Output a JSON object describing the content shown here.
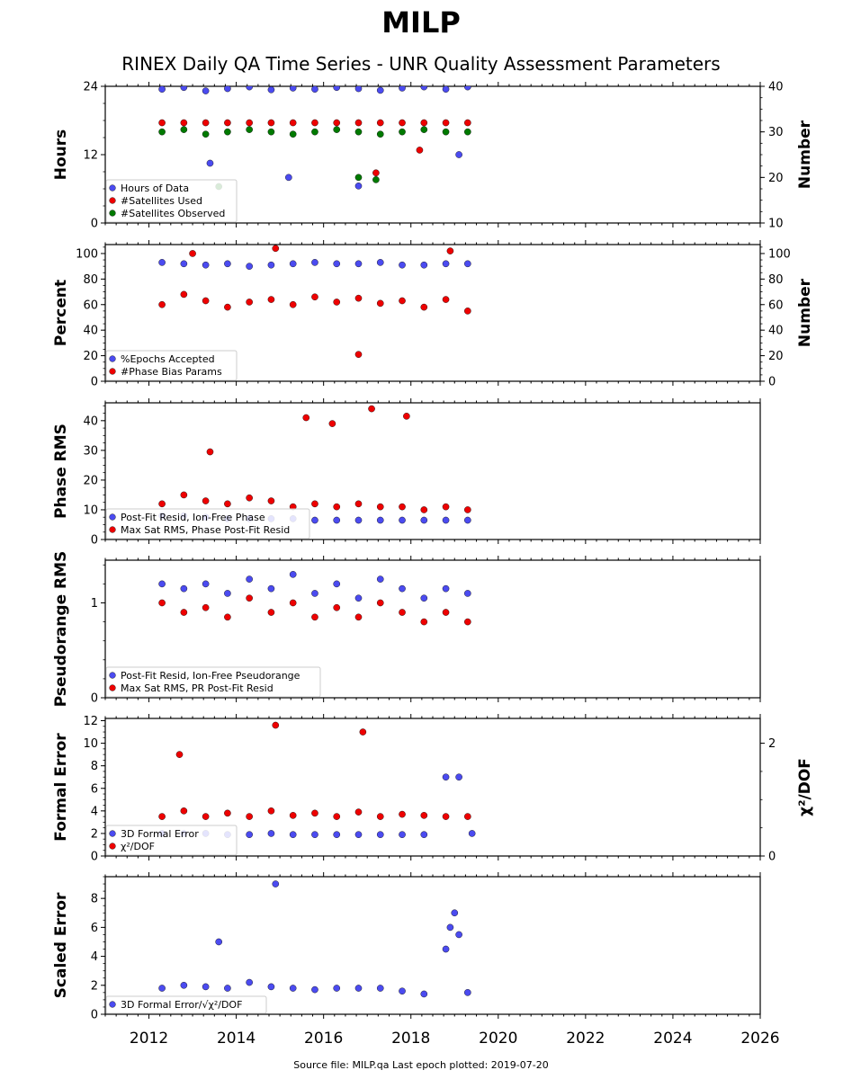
{
  "title": "MILP",
  "subtitle": "RINEX Daily QA Time Series - UNR Quality Assessment Parameters",
  "footer": "Source file: MILP.qa Last epoch plotted: 2019-07-20",
  "colors": {
    "blue": "#4b4bf0",
    "red": "#ee0000",
    "green": "#007a00",
    "edge": "#000000"
  },
  "chart_data": [
    {
      "type": "scatter",
      "ylabel": "Hours",
      "y2label": "Number",
      "xlim": [
        2011,
        2026
      ],
      "ylim": [
        0,
        24
      ],
      "y2lim": [
        10,
        40
      ],
      "yticks": [
        0,
        12,
        24
      ],
      "y2ticks": [
        10,
        20,
        30,
        40
      ],
      "legend": "lower-left",
      "series": [
        {
          "name": "Hours of Data",
          "color": "blue",
          "axis": "left",
          "x": [
            2012.3,
            2012.8,
            2013.3,
            2013.8,
            2014.3,
            2014.8,
            2015.3,
            2015.8,
            2016.3,
            2016.8,
            2017.3,
            2017.8,
            2018.3,
            2018.8,
            2019.3,
            2013.4,
            2015.2,
            2016.8,
            2019.1
          ],
          "y": [
            23.5,
            23.8,
            23.2,
            23.6,
            23.9,
            23.4,
            23.7,
            23.5,
            23.8,
            23.6,
            23.3,
            23.7,
            23.9,
            23.5,
            23.9,
            10.5,
            8.0,
            6.5,
            12.0
          ]
        },
        {
          "name": "#Satellites Used",
          "color": "red",
          "axis": "right",
          "x": [
            2012.3,
            2012.8,
            2013.3,
            2013.8,
            2014.3,
            2014.8,
            2015.3,
            2015.8,
            2016.3,
            2016.8,
            2017.3,
            2017.8,
            2018.3,
            2018.8,
            2019.3,
            2017.2,
            2018.2
          ],
          "y": [
            32,
            32,
            32,
            32,
            32,
            32,
            32,
            32,
            32,
            32,
            32,
            32,
            32,
            32,
            32,
            21,
            26
          ]
        },
        {
          "name": "#Satellites Observed",
          "color": "green",
          "axis": "right",
          "x": [
            2012.3,
            2012.8,
            2013.3,
            2013.8,
            2014.3,
            2014.8,
            2015.3,
            2015.8,
            2016.3,
            2016.8,
            2017.3,
            2017.8,
            2018.3,
            2018.8,
            2019.3,
            2013.6,
            2016.8,
            2017.2
          ],
          "y": [
            30,
            30.5,
            29.5,
            30,
            30.5,
            30,
            29.5,
            30,
            30.5,
            30,
            29.5,
            30,
            30.5,
            30,
            30,
            18,
            20,
            19.5
          ]
        }
      ]
    },
    {
      "type": "scatter",
      "ylabel": "Percent",
      "y2label": "Number",
      "xlim": [
        2011,
        2026
      ],
      "ylim": [
        0,
        107
      ],
      "y2lim": [
        0,
        107
      ],
      "yticks": [
        0,
        20,
        40,
        60,
        80,
        100
      ],
      "y2ticks": [
        0,
        20,
        40,
        60,
        80,
        100
      ],
      "legend": "lower-left",
      "series": [
        {
          "name": "%Epochs Accepted",
          "color": "blue",
          "axis": "left",
          "x": [
            2012.3,
            2012.8,
            2013.3,
            2013.8,
            2014.3,
            2014.8,
            2015.3,
            2015.8,
            2016.3,
            2016.8,
            2017.3,
            2017.8,
            2018.3,
            2018.8,
            2019.3
          ],
          "y": [
            93,
            92,
            91,
            92,
            90,
            91,
            92,
            93,
            92,
            92,
            93,
            91,
            91,
            92,
            92
          ]
        },
        {
          "name": "#Phase Bias Params",
          "color": "red",
          "axis": "right",
          "x": [
            2012.3,
            2012.8,
            2013.3,
            2013.8,
            2014.3,
            2014.8,
            2015.3,
            2015.8,
            2016.3,
            2016.8,
            2017.3,
            2017.8,
            2018.3,
            2018.8,
            2019.3,
            2014.9,
            2016.8,
            2018.9,
            2013.0
          ],
          "y": [
            60,
            68,
            63,
            58,
            62,
            64,
            60,
            66,
            62,
            65,
            61,
            63,
            58,
            64,
            55,
            104,
            21,
            102,
            100
          ]
        }
      ]
    },
    {
      "type": "scatter",
      "ylabel": "Phase RMS",
      "xlim": [
        2011,
        2026
      ],
      "ylim": [
        0,
        46
      ],
      "yticks": [
        0,
        10,
        20,
        30,
        40
      ],
      "legend": "lower-left",
      "series": [
        {
          "name": "Post-Fit Resid, Ion-Free Phase",
          "color": "blue",
          "axis": "left",
          "x": [
            2012.3,
            2012.8,
            2013.3,
            2013.8,
            2014.3,
            2014.8,
            2015.3,
            2015.8,
            2016.3,
            2016.8,
            2017.3,
            2017.8,
            2018.3,
            2018.8,
            2019.3
          ],
          "y": [
            8,
            8,
            7.5,
            7,
            7,
            7,
            7,
            6.5,
            6.5,
            6.5,
            6.5,
            6.5,
            6.5,
            6.5,
            6.5
          ]
        },
        {
          "name": "Max Sat RMS, Phase Post-Fit Resid",
          "color": "red",
          "axis": "left",
          "x": [
            2012.3,
            2012.8,
            2013.3,
            2013.8,
            2014.3,
            2014.8,
            2015.3,
            2015.8,
            2016.3,
            2016.8,
            2017.3,
            2017.8,
            2018.3,
            2018.8,
            2019.3,
            2015.6,
            2016.2,
            2017.1,
            2017.9,
            2013.4
          ],
          "y": [
            12,
            15,
            13,
            12,
            14,
            13,
            11,
            12,
            11,
            12,
            11,
            11,
            10,
            11,
            10,
            41,
            39,
            44,
            41.5,
            29.5
          ]
        }
      ]
    },
    {
      "type": "scatter",
      "ylabel": "Pseudorange RMS",
      "xlim": [
        2011,
        2026
      ],
      "ylim": [
        0,
        1.45
      ],
      "yticks": [
        0,
        1
      ],
      "legend": "lower-left",
      "series": [
        {
          "name": "Post-Fit Resid, Ion-Free Pseudorange",
          "color": "blue",
          "axis": "left",
          "x": [
            2012.3,
            2012.8,
            2013.3,
            2013.8,
            2014.3,
            2014.8,
            2015.3,
            2015.8,
            2016.3,
            2016.8,
            2017.3,
            2017.8,
            2018.3,
            2018.8,
            2019.3
          ],
          "y": [
            1.2,
            1.15,
            1.2,
            1.1,
            1.25,
            1.15,
            1.3,
            1.1,
            1.2,
            1.05,
            1.25,
            1.15,
            1.05,
            1.15,
            1.1
          ]
        },
        {
          "name": "Max Sat RMS, PR Post-Fit Resid",
          "color": "red",
          "axis": "left",
          "x": [
            2012.3,
            2012.8,
            2013.3,
            2013.8,
            2014.3,
            2014.8,
            2015.3,
            2015.8,
            2016.3,
            2016.8,
            2017.3,
            2017.8,
            2018.3,
            2018.8,
            2019.3
          ],
          "y": [
            1.0,
            0.9,
            0.95,
            0.85,
            1.05,
            0.9,
            1.0,
            0.85,
            0.95,
            0.85,
            1.0,
            0.9,
            0.8,
            0.9,
            0.8
          ]
        }
      ]
    },
    {
      "type": "scatter",
      "ylabel": "Formal Error",
      "y2label": "χ²/DOF",
      "xlim": [
        2011,
        2026
      ],
      "ylim": [
        0,
        12.2
      ],
      "y2lim": [
        0,
        2.44
      ],
      "yticks": [
        0,
        2,
        4,
        6,
        8,
        10,
        12
      ],
      "y2ticks": [
        0,
        2
      ],
      "legend": "lower-left",
      "series": [
        {
          "name": "3D Formal Error",
          "color": "blue",
          "axis": "left",
          "x": [
            2012.3,
            2012.8,
            2013.3,
            2013.8,
            2014.3,
            2014.8,
            2015.3,
            2015.8,
            2016.3,
            2016.8,
            2017.3,
            2017.8,
            2018.3,
            2018.8,
            2019.1,
            2019.4
          ],
          "y": [
            2.0,
            2.0,
            2.0,
            1.9,
            1.9,
            2.0,
            1.9,
            1.9,
            1.9,
            1.9,
            1.9,
            1.9,
            1.9,
            7.0,
            7.0,
            2.0
          ]
        },
        {
          "name": "χ²/DOF",
          "color": "red",
          "axis": "left",
          "x": [
            2012.3,
            2012.8,
            2013.3,
            2013.8,
            2014.3,
            2014.8,
            2015.3,
            2015.8,
            2016.3,
            2016.8,
            2017.3,
            2017.8,
            2018.3,
            2018.8,
            2019.3,
            2014.9,
            2016.9,
            2012.7
          ],
          "y": [
            3.5,
            4.0,
            3.5,
            3.8,
            3.5,
            4.0,
            3.6,
            3.8,
            3.5,
            3.9,
            3.5,
            3.7,
            3.6,
            3.5,
            3.5,
            11.6,
            11.0,
            9.0
          ]
        }
      ]
    },
    {
      "type": "scatter",
      "ylabel": "Scaled Error",
      "xlim": [
        2011,
        2026
      ],
      "ylim": [
        0,
        9.5
      ],
      "yticks": [
        0,
        2,
        4,
        6,
        8
      ],
      "xticks": [
        2012,
        2014,
        2016,
        2018,
        2020,
        2022,
        2024,
        2026
      ],
      "legend": "lower-left",
      "series": [
        {
          "name": "3D Formal Error/√χ²/DOF",
          "color": "blue",
          "axis": "left",
          "x": [
            2012.3,
            2012.8,
            2013.3,
            2013.8,
            2014.3,
            2014.8,
            2015.3,
            2015.8,
            2016.3,
            2016.8,
            2017.3,
            2017.8,
            2018.3,
            2018.8,
            2018.9,
            2019.0,
            2019.1,
            2019.3,
            2014.9,
            2013.6
          ],
          "y": [
            1.8,
            2.0,
            1.9,
            1.8,
            2.2,
            1.9,
            1.8,
            1.7,
            1.8,
            1.8,
            1.8,
            1.6,
            1.4,
            4.5,
            6.0,
            7.0,
            5.5,
            1.5,
            9.0,
            5.0
          ]
        }
      ]
    }
  ]
}
